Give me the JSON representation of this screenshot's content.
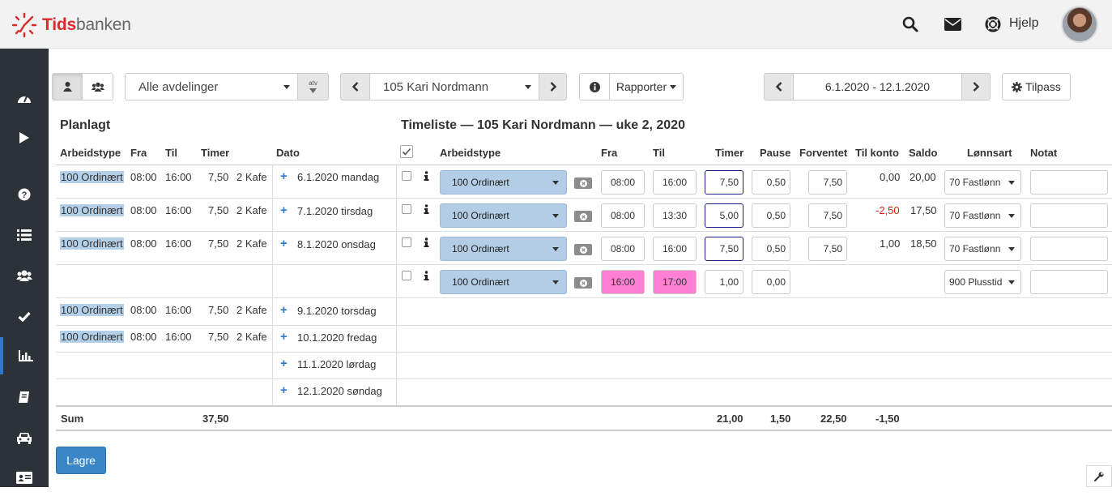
{
  "app": {
    "name_part1": "Tids",
    "name_part2": "banken",
    "help_label": "Hjelp"
  },
  "colors": {
    "accent": "#2e7ac8",
    "brand": "#d92b2b",
    "sidebar": "#2d3238",
    "worktype_bg": "#b3cde6",
    "highlight_pink": "#ff80d2",
    "negative": "#dd2211"
  },
  "sidebar": {
    "items": [
      "dashboard-icon",
      "play-icon",
      "question-icon",
      "list-icon",
      "users-icon",
      "check-icon",
      "bar-chart-icon",
      "book-icon",
      "car-icon",
      "id-card-icon"
    ],
    "active": "bar-chart-icon"
  },
  "toolbar": {
    "department": "Alle avdelinger",
    "atv_label": "atv",
    "employee": "105 Kari Nordmann",
    "report_label": "Rapporter",
    "date_range": "6.1.2020 - 12.1.2020",
    "customize_label": "Tilpass"
  },
  "planned": {
    "title": "Planlagt",
    "headers": {
      "worktype": "Arbeidstype",
      "from": "Fra",
      "to": "Til",
      "hours": "Timer",
      "date": "Dato"
    },
    "rows": [
      {
        "worktype": "100 Ordinært",
        "from": "08:00",
        "to": "16:00",
        "hours": "7,50",
        "place": "2 Kafe",
        "date": "6.1.2020 mandag"
      },
      {
        "worktype": "100 Ordinært",
        "from": "08:00",
        "to": "16:00",
        "hours": "7,50",
        "place": "2 Kafe",
        "date": "7.1.2020 tirsdag"
      },
      {
        "worktype": "100 Ordinært",
        "from": "08:00",
        "to": "16:00",
        "hours": "7,50",
        "place": "2 Kafe",
        "date": "8.1.2020 onsdag"
      },
      {
        "worktype": "100 Ordinært",
        "from": "08:00",
        "to": "16:00",
        "hours": "7,50",
        "place": "2 Kafe",
        "date": "9.1.2020 torsdag"
      },
      {
        "worktype": "100 Ordinært",
        "from": "08:00",
        "to": "16:00",
        "hours": "7,50",
        "place": "2 Kafe",
        "date": "10.1.2020 fredag"
      },
      {
        "date": "11.1.2020 lørdag"
      },
      {
        "date": "12.1.2020 søndag"
      }
    ]
  },
  "timesheet": {
    "title": "Timeliste — 105 Kari Nordmann — uke 2, 2020",
    "headers": {
      "worktype": "Arbeidstype",
      "from": "Fra",
      "to": "Til",
      "hours": "Timer",
      "pause": "Pause",
      "expected": "Forventet",
      "to_account": "Til konto",
      "balance": "Saldo",
      "wage_type": "Lønnsart",
      "note": "Notat"
    },
    "rows": [
      {
        "worktype": "100 Ordinært",
        "from": "08:00",
        "to": "16:00",
        "hours": "7,50",
        "pause": "0,50",
        "expected": "7,50",
        "to_account": "0,00",
        "balance": "20,00",
        "wage_type": "70 Fastlønn",
        "note": ""
      },
      {
        "worktype": "100 Ordinært",
        "from": "08:00",
        "to": "13:30",
        "hours": "5,00",
        "pause": "0,50",
        "expected": "7,50",
        "to_account": "-2,50",
        "balance": "17,50",
        "wage_type": "70 Fastlønn",
        "note": ""
      },
      {
        "worktype": "100 Ordinært",
        "from": "08:00",
        "to": "16:00",
        "hours": "7,50",
        "pause": "0,50",
        "expected": "7,50",
        "to_account": "1,00",
        "balance": "18,50",
        "wage_type": "70 Fastlønn",
        "note": ""
      },
      {
        "worktype": "100 Ordinært",
        "from": "16:00",
        "to": "17:00",
        "hours": "1,00",
        "pause": "0,00",
        "expected": "",
        "to_account": "",
        "balance": "",
        "wage_type": "900 Plusstid",
        "note": ""
      }
    ]
  },
  "sum": {
    "label": "Sum",
    "planned_hours": "37,50",
    "hours": "21,00",
    "pause": "1,50",
    "expected": "22,50",
    "to_account": "-1,50"
  },
  "save_label": "Lagre"
}
